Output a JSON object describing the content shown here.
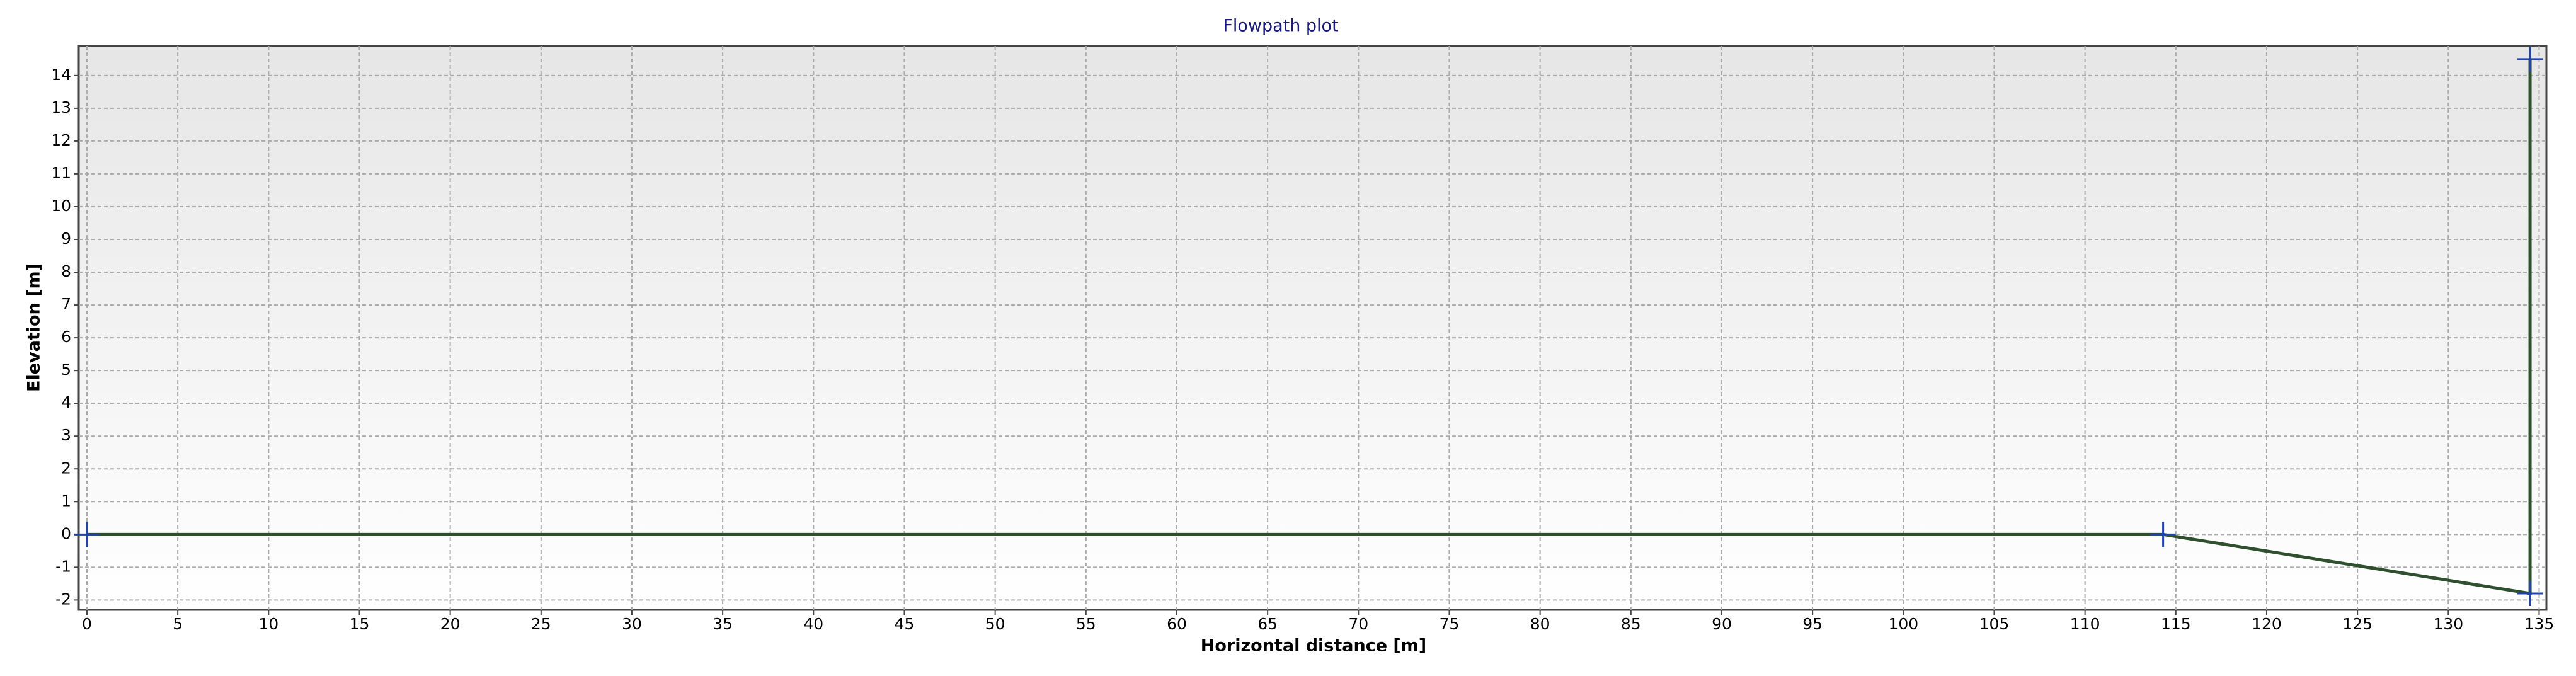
{
  "chart_data": {
    "type": "line",
    "title": "Flowpath plot",
    "x_label": "Horizontal distance [m]",
    "y_label": "Elevation [m]",
    "series": [
      {
        "color": "#2f4f2f",
        "x": [
          0,
          114.3,
          134.5,
          134.5
        ],
        "values": [
          0,
          0,
          -1.8,
          14.5
        ]
      }
    ],
    "xlim": [
      -0.45,
      135.4
    ],
    "ylim": [
      -2.3,
      14.9
    ],
    "xticks": [
      0,
      5,
      10,
      15,
      20,
      25,
      30,
      35,
      40,
      45,
      50,
      55,
      60,
      65,
      70,
      75,
      80,
      85,
      90,
      95,
      100,
      105,
      110,
      115,
      120,
      125,
      130,
      135
    ],
    "yticks": [
      -2,
      -1,
      0,
      1,
      2,
      3,
      4,
      5,
      6,
      7,
      8,
      9,
      10,
      11,
      12,
      13,
      14
    ],
    "grid": true
  }
}
